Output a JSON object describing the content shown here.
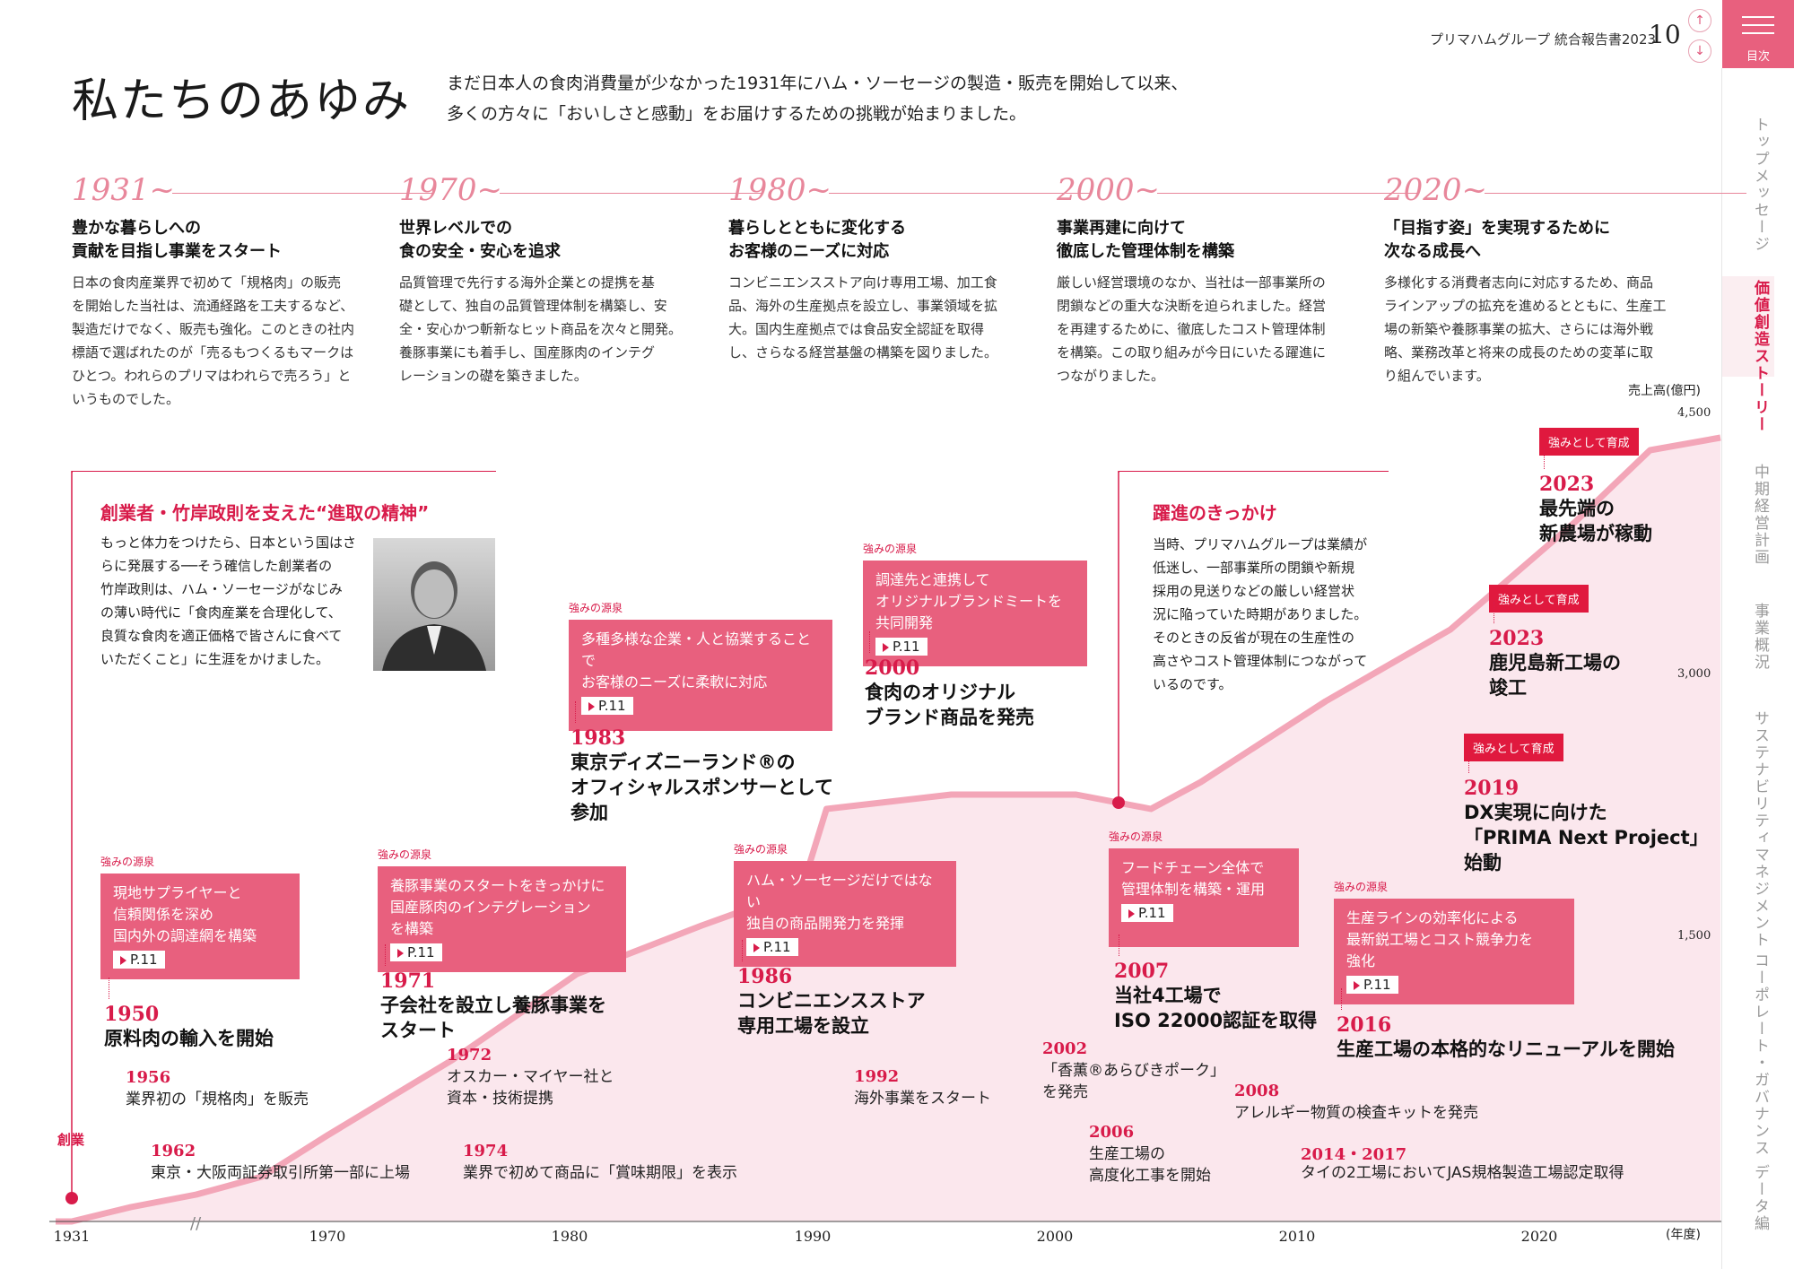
{
  "header": {
    "report_title": "プリマハムグループ 統合報告書2023",
    "page_number": "10",
    "up_icon": "↑",
    "down_icon": "↓"
  },
  "toc": {
    "label": "目次",
    "icon": "menu-icon"
  },
  "sidebar": {
    "items": [
      {
        "label": "トップメッセージ",
        "active": false
      },
      {
        "label": "価値創造ストーリー",
        "active": true
      },
      {
        "label": "中期経営計画",
        "active": false
      },
      {
        "label": "事業概況",
        "active": false
      },
      {
        "label": "サステナビリティマネジメント",
        "active": false
      },
      {
        "label": "コーポレート・ガバナンス",
        "active": false
      },
      {
        "label": "データ編",
        "active": false
      }
    ]
  },
  "page": {
    "title": "私たちのあゆみ",
    "intro_line1": "まだ日本人の食肉消費量が少なかった1931年にハム・ソーセージの製造・販売を開始して以来、",
    "intro_line2": "多くの方々に「おいしさと感動」をお届けするための挑戦が始まりました。"
  },
  "eras": [
    {
      "year": "1931~",
      "head": [
        "豊かな暮らしへの",
        "貢献を目指し事業をスタート"
      ],
      "body": [
        "日本の食肉産業界で初めて「規格肉」の販売",
        "を開始した当社は、流通経路を工夫するなど、",
        "製造だけでなく、販売も強化。このときの社内",
        "標語で選ばれたのが「売るもつくるもマークは",
        "ひとつ。われらのプリマはわれらで売ろう」と",
        "いうものでした。"
      ]
    },
    {
      "year": "1970~",
      "head": [
        "世界レベルでの",
        "食の安全・安心を追求"
      ],
      "body": [
        "品質管理で先行する海外企業との提携を基",
        "礎として、独自の品質管理体制を構築し、安",
        "全・安心かつ斬新なヒット商品を次々と開発。",
        "養豚事業にも着手し、国産豚肉のインテグ",
        "レーションの礎を築きました。"
      ]
    },
    {
      "year": "1980~",
      "head": [
        "暮らしとともに変化する",
        "お客様のニーズに対応"
      ],
      "body": [
        "コンビニエンスストア向け専用工場、加工食",
        "品、海外の生産拠点を設立し、事業領域を拡",
        "大。国内生産拠点では食品安全認証を取得",
        "し、さらなる経営基盤の構築を図りました。"
      ]
    },
    {
      "year": "2000~",
      "head": [
        "事業再建に向けて",
        "徹底した管理体制を構築"
      ],
      "body": [
        "厳しい経営環境のなか、当社は一部事業所の",
        "閉鎖などの重大な決断を迫られました。経営",
        "を再建するために、徹底したコスト管理体制",
        "を構築。この取り組みが今日にいたる躍進に",
        "つながりました。"
      ]
    },
    {
      "year": "2020~",
      "head": [
        "「目指す姿」を実現するために",
        "次なる成長へ"
      ],
      "body": [
        "多様化する消費者志向に対応するため、商品",
        "ラインアップの拡充を進めるとともに、生産工",
        "場の新築や養豚事業の拡大、さらには海外戦",
        "略、業務改革と将来の成長のための変革に取",
        "り組んでいます。"
      ]
    }
  ],
  "chart_data": {
    "type": "area",
    "ylabel": "売上高(億円)",
    "xlabel": "(年度)",
    "x_ticks": [
      "1931",
      "1970",
      "1980",
      "1990",
      "2000",
      "2010",
      "2020"
    ],
    "y_ticks": [
      "1,500",
      "3,000",
      "4,500"
    ],
    "ylim": [
      0,
      4500
    ],
    "series": [
      {
        "x": [
          1931,
          1940,
          1950,
          1960,
          1970,
          1975,
          1980,
          1985,
          1989,
          1990,
          1995,
          2000,
          2003,
          2005,
          2010,
          2015,
          2020,
          2023
        ],
        "values": [
          0,
          80,
          150,
          250,
          480,
          900,
          1380,
          1650,
          1850,
          2300,
          2380,
          2380,
          2300,
          2450,
          2900,
          3300,
          3900,
          4300
        ]
      }
    ],
    "founding_label": "創業"
  },
  "source_label": "強みの源泉",
  "grow_label": "強みとして育成",
  "page_ref": "P.11",
  "callouts": {
    "founder": {
      "title": "創業者・竹岸政則を支えた“進取の精神”",
      "body": [
        "もっと体力をつけたら、日本という国はさ",
        "らに発展する──そう確信した創業者の",
        "竹岸政則は、ハム・ソーセージがなじみ",
        "の薄い時代に「食肉産業を合理化して、",
        "良質な食肉を適正価格で皆さんに食べて",
        "いただくこと」に生涯をかけました。"
      ]
    },
    "leap": {
      "title": "躍進のきっかけ",
      "body": [
        "当時、プリマハムグループは業績が",
        "低迷し、一部事業所の閉鎖や新規",
        "採用の見送りなどの厳しい経営状",
        "況に陥っていた時期がありました。",
        "そのときの反省が現在の生産性の",
        "高さやコスト管理体制につながって",
        "いるのです。"
      ]
    }
  },
  "sources": {
    "s1950": [
      "現地サプライヤーと",
      "信頼関係を深め",
      "国内外の調達網を構築"
    ],
    "s1971": [
      "養豚事業のスタートをきっかけに",
      "国産豚肉のインテグレーション",
      "を構築"
    ],
    "s1983": [
      "多種多様な企業・人と協業することで",
      "お客様のニーズに柔軟に対応"
    ],
    "s1986": [
      "ハム・ソーセージだけではない",
      "独自の商品開発力を発揮"
    ],
    "s2000": [
      "調達先と連携して",
      "オリジナルブランドミートを",
      "共同開発"
    ],
    "s2007": [
      "フードチェーン全体で",
      "管理体制を構築・運用"
    ],
    "s2016": [
      "生産ラインの効率化による",
      "最新鋭工場とコスト競争力を",
      "強化"
    ]
  },
  "events": {
    "e1950": {
      "year": "1950",
      "text": [
        "原料肉の輸入を開始"
      ]
    },
    "e1956": {
      "year": "1956",
      "text": [
        "業界初の「規格肉」を販売"
      ]
    },
    "e1962": {
      "year": "1962",
      "text": [
        "東京・大阪両証券取引所第一部に上場"
      ]
    },
    "e1971": {
      "year": "1971",
      "text": [
        "子会社を設立し養豚事業を",
        "スタート"
      ]
    },
    "e1972": {
      "year": "1972",
      "text": [
        "オスカー・マイヤー社と",
        "資本・技術提携"
      ]
    },
    "e1974": {
      "year": "1974",
      "text": [
        "業界で初めて商品に「賞味期限」を表示"
      ]
    },
    "e1983": {
      "year": "1983",
      "text": [
        "東京ディズニーランド®の",
        "オフィシャルスポンサーとして",
        "参加"
      ]
    },
    "e1986": {
      "year": "1986",
      "text": [
        "コンビニエンスストア",
        "専用工場を設立"
      ]
    },
    "e1992": {
      "year": "1992",
      "text": [
        "海外事業をスタート"
      ]
    },
    "e2000": {
      "year": "2000",
      "text": [
        "食肉のオリジナル",
        "ブランド商品を発売"
      ]
    },
    "e2002": {
      "year": "2002",
      "text": [
        "「香薫®あらびきポーク」",
        "を発売"
      ]
    },
    "e2006": {
      "year": "2006",
      "text": [
        "生産工場の",
        "高度化工事を開始"
      ]
    },
    "e2007": {
      "year": "2007",
      "text": [
        "当社4工場で",
        "ISO 22000認証を取得"
      ]
    },
    "e2008": {
      "year": "2008",
      "text": [
        "アレルギー物質の検査キットを発売"
      ]
    },
    "e2014": {
      "year": "2014・2017",
      "text": [
        "タイの2工場においてJAS規格製造工場認定取得"
      ]
    },
    "e2016": {
      "year": "2016",
      "text": [
        "生産工場の本格的なリニューアルを開始"
      ]
    },
    "e2019": {
      "year": "2019",
      "text": [
        "DX実現に向けた",
        "「PRIMA Next Project」",
        "始動"
      ]
    },
    "e2023a": {
      "year": "2023",
      "text": [
        "鹿児島新工場の",
        "竣工"
      ]
    },
    "e2023b": {
      "year": "2023",
      "text": [
        "最先端の",
        "新農場が稼動"
      ]
    }
  },
  "colors": {
    "accent": "#d81b4a",
    "pink_box": "#e8607e",
    "area_fill": "#fbe7ed",
    "area_line": "#f3a6b8"
  }
}
